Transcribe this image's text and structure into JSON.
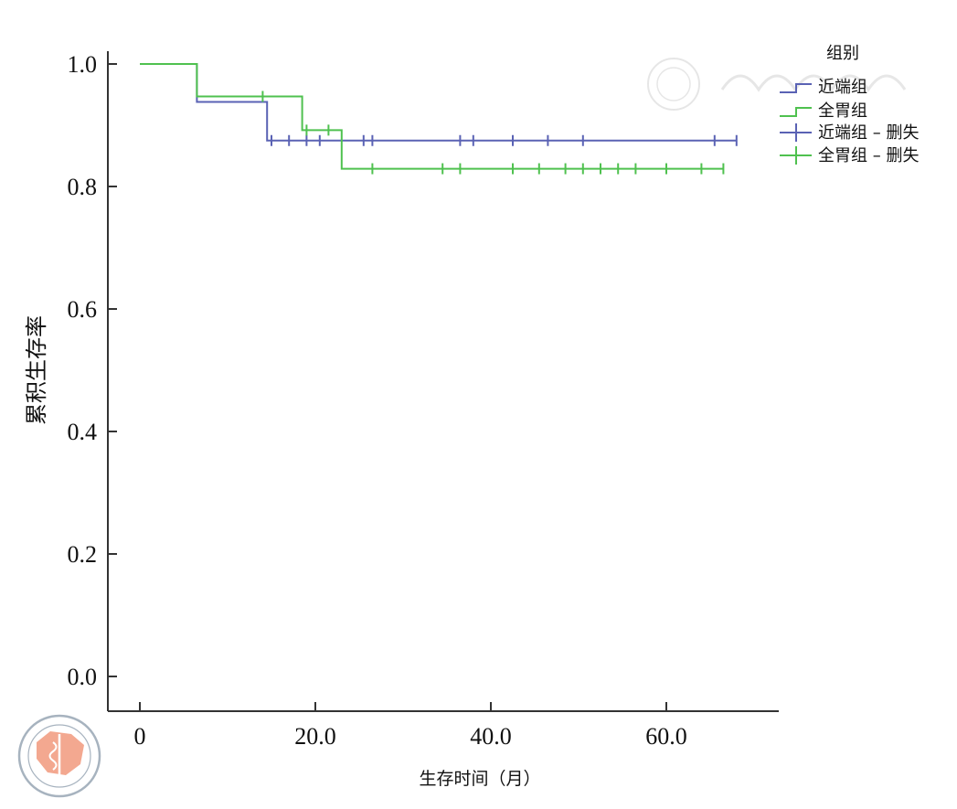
{
  "chart_data": {
    "type": "line",
    "subtype": "kaplan-meier",
    "title": "",
    "xlabel": "生存时间（月）",
    "ylabel": "累积生存率",
    "xlim": [
      -4,
      72
    ],
    "ylim": [
      -0.055,
      1.04
    ],
    "x_ticks": [
      0,
      20,
      40,
      60
    ],
    "x_tick_labels": [
      "0",
      "20.0",
      "40.0",
      "60.0"
    ],
    "y_ticks": [
      0,
      0.2,
      0.4,
      0.6,
      0.8,
      1.0
    ],
    "y_tick_labels": [
      "0.0",
      "0.2",
      "0.4",
      "0.6",
      "0.8",
      "1.0"
    ],
    "grid": false,
    "legend": {
      "title": "组别",
      "placement": "top-right",
      "entries": [
        "近端组",
        "全胃组",
        "近端组 – 删失",
        "全胃组 – 删失"
      ]
    },
    "series": [
      {
        "name": "近端组",
        "color": "#5a62b4",
        "steps": [
          {
            "x": 0,
            "y": 1.0
          },
          {
            "x": 6.5,
            "y": 0.938
          },
          {
            "x": 14.5,
            "y": 0.875
          }
        ],
        "end_x": 68,
        "censored": [
          15,
          17,
          19,
          20.5,
          25.5,
          26.5,
          36.5,
          38,
          42.5,
          46.5,
          50.5,
          65.5,
          68
        ]
      },
      {
        "name": "全胃组",
        "color": "#4fc14f",
        "steps": [
          {
            "x": 0,
            "y": 1.0
          },
          {
            "x": 6.5,
            "y": 0.947
          },
          {
            "x": 18.5,
            "y": 0.892
          },
          {
            "x": 23,
            "y": 0.829
          }
        ],
        "end_x": 66.5,
        "censored": [
          14,
          19,
          21.5,
          26.5,
          34.5,
          36.5,
          42.5,
          45.5,
          48.5,
          50.5,
          52.5,
          54.5,
          56.5,
          60,
          64,
          66.5
        ]
      }
    ]
  }
}
